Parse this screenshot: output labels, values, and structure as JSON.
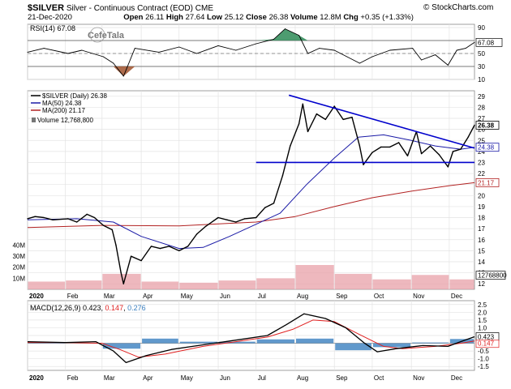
{
  "header": {
    "ticker": "$SILVER",
    "name": "Silver - Continuous Contract (EOD)",
    "exchange": "CME",
    "date": "21-Dec-2020",
    "open_label": "Open",
    "open": "26.11",
    "high_label": "High",
    "high": "27.64",
    "low_label": "Low",
    "low": "25.12",
    "close_label": "Close",
    "close": "26.38",
    "volume_label": "Volume",
    "volume": "12.8M",
    "chg_label": "Chg",
    "chg": "+0.35 (+1.33%)",
    "credit": "© StockCharts.com"
  },
  "watermark": "CefeTala",
  "colors": {
    "price": "#000000",
    "ma50": "#1a1aa6",
    "ma200": "#b22222",
    "volume": "#e8a0a8",
    "trendline": "#0000cc",
    "rsi_over": "#2e8b57",
    "rsi_under": "#a0522d",
    "macd_line": "#000000",
    "signal_line": "#e02020",
    "histogram": "#3a7fbf"
  },
  "chart_data": [
    {
      "type": "line",
      "panel": "RSI",
      "title": "RSI(14) 67.08",
      "last_value": "67.08",
      "ylim": [
        10,
        95
      ],
      "yticks": [
        "90",
        "70",
        "50",
        "30",
        "10"
      ],
      "reference_lines": [
        70,
        30
      ],
      "x": [
        "2020-01-02",
        "2020-01-15",
        "2020-02-03",
        "2020-02-14",
        "2020-03-02",
        "2020-03-10",
        "2020-03-18",
        "2020-03-27",
        "2020-04-15",
        "2020-05-01",
        "2020-05-15",
        "2020-06-01",
        "2020-06-15",
        "2020-07-01",
        "2020-07-15",
        "2020-07-24",
        "2020-08-04",
        "2020-08-11",
        "2020-08-20",
        "2020-09-01",
        "2020-09-21",
        "2020-10-01",
        "2020-10-15",
        "2020-11-02",
        "2020-11-09",
        "2020-11-20",
        "2020-11-30",
        "2020-12-07",
        "2020-12-14",
        "2020-12-21"
      ],
      "values": [
        52,
        58,
        50,
        55,
        45,
        35,
        15,
        58,
        52,
        60,
        50,
        62,
        55,
        65,
        72,
        88,
        78,
        50,
        58,
        55,
        35,
        45,
        55,
        58,
        40,
        48,
        32,
        55,
        58,
        67.08
      ]
    },
    {
      "type": "line",
      "panel": "Price",
      "title": "$SILVER (Daily) 26.38",
      "ylim": [
        11.5,
        29.5
      ],
      "yticks": [
        "29",
        "28",
        "27",
        "26",
        "25",
        "24",
        "23",
        "22",
        "21",
        "20",
        "19",
        "18",
        "17",
        "16",
        "15",
        "14",
        "13",
        "12"
      ],
      "xticks": [
        "2020",
        "Feb",
        "Mar",
        "Apr",
        "May",
        "Jun",
        "Jul",
        "Aug",
        "Sep",
        "Oct",
        "Nov",
        "Dec"
      ],
      "price_labels": [
        "26.38",
        "24.38",
        "21.17"
      ],
      "series": [
        {
          "name": "$SILVER (Daily) 26.38",
          "x": [
            "2020-01-02",
            "2020-01-08",
            "2020-01-15",
            "2020-01-22",
            "2020-02-03",
            "2020-02-10",
            "2020-02-18",
            "2020-02-24",
            "2020-03-02",
            "2020-03-09",
            "2020-03-12",
            "2020-03-16",
            "2020-03-18",
            "2020-03-24",
            "2020-04-01",
            "2020-04-09",
            "2020-04-16",
            "2020-04-23",
            "2020-05-01",
            "2020-05-08",
            "2020-05-15",
            "2020-05-22",
            "2020-06-01",
            "2020-06-08",
            "2020-06-15",
            "2020-06-22",
            "2020-07-01",
            "2020-07-08",
            "2020-07-15",
            "2020-07-22",
            "2020-07-28",
            "2020-08-04",
            "2020-08-07",
            "2020-08-11",
            "2020-08-18",
            "2020-08-25",
            "2020-09-01",
            "2020-09-08",
            "2020-09-15",
            "2020-09-21",
            "2020-09-24",
            "2020-10-01",
            "2020-10-08",
            "2020-10-15",
            "2020-10-22",
            "2020-10-29",
            "2020-11-05",
            "2020-11-09",
            "2020-11-16",
            "2020-11-23",
            "2020-11-30",
            "2020-12-04",
            "2020-12-10",
            "2020-12-16",
            "2020-12-21"
          ],
          "values": [
            17.9,
            18.1,
            18.0,
            17.8,
            17.9,
            17.6,
            18.3,
            18.0,
            17.3,
            16.9,
            15.5,
            13.0,
            12.0,
            14.5,
            14.1,
            15.4,
            15.2,
            15.4,
            15.0,
            15.4,
            16.5,
            17.2,
            18.0,
            17.8,
            17.6,
            17.9,
            18.0,
            18.9,
            19.3,
            21.8,
            24.5,
            26.5,
            28.3,
            25.8,
            27.4,
            26.9,
            28.1,
            26.9,
            27.1,
            24.5,
            22.8,
            23.9,
            24.4,
            24.4,
            24.8,
            23.6,
            25.8,
            23.8,
            24.5,
            23.7,
            22.6,
            24.0,
            24.2,
            25.3,
            26.38
          ]
        },
        {
          "name": "MA(50) 24.38",
          "x": [
            "2020-01-02",
            "2020-02-10",
            "2020-03-10",
            "2020-04-01",
            "2020-05-01",
            "2020-05-20",
            "2020-06-10",
            "2020-07-01",
            "2020-07-20",
            "2020-08-10",
            "2020-09-01",
            "2020-09-20",
            "2020-10-10",
            "2020-11-01",
            "2020-11-20",
            "2020-12-10",
            "2020-12-21"
          ],
          "values": [
            17.8,
            17.9,
            17.6,
            16.3,
            15.2,
            15.3,
            16.3,
            17.4,
            18.4,
            21.0,
            23.4,
            25.3,
            25.5,
            25.0,
            24.5,
            24.2,
            24.38
          ]
        },
        {
          "name": "MA(200) 21.17",
          "x": [
            "2020-01-02",
            "2020-03-01",
            "2020-05-01",
            "2020-07-01",
            "2020-08-01",
            "2020-09-01",
            "2020-10-01",
            "2020-11-01",
            "2020-12-01",
            "2020-12-21"
          ],
          "values": [
            17.1,
            17.3,
            17.25,
            17.6,
            18.1,
            19.0,
            19.8,
            20.4,
            20.9,
            21.17
          ]
        }
      ],
      "trendlines": [
        {
          "x": [
            "2020-07-27",
            "2020-12-21"
          ],
          "values": [
            29.1,
            24.3
          ]
        },
        {
          "x": [
            "2020-07-01",
            "2020-12-21"
          ],
          "values": [
            23.0,
            23.0
          ]
        }
      ],
      "volume": {
        "label": "Volume 12,768,800",
        "ylim": [
          0,
          55
        ],
        "yticks": [
          "40M",
          "30M",
          "20M",
          "10M"
        ],
        "last_label": "12768800",
        "x": [
          "2020-01",
          "2020-02",
          "2020-03",
          "2020-04",
          "2020-05",
          "2020-06",
          "2020-07",
          "2020-08",
          "2020-09",
          "2020-10",
          "2020-11",
          "2020-12"
        ],
        "values": [
          7,
          8,
          14,
          7,
          6,
          8,
          10,
          22,
          14,
          9,
          13,
          9
        ]
      }
    },
    {
      "type": "line",
      "panel": "MACD",
      "title": "MACD(12,26,9) 0.423, 0.147, 0.276",
      "legend_parts": [
        "MACD(12,26,9) 0.423, ",
        "0.147",
        ", ",
        "0.276"
      ],
      "ylim": [
        -1.75,
        2.75
      ],
      "yticks": [
        "2.5",
        "2.0",
        "1.5",
        "1.0",
        "0.5",
        "-0.5",
        "-1.0",
        "-1.5"
      ],
      "value_labels": [
        "0.423",
        "0.147"
      ],
      "xticks": [
        "2020",
        "Feb",
        "Mar",
        "Apr",
        "May",
        "Jun",
        "Jul",
        "Aug",
        "Sep",
        "Oct",
        "Nov",
        "Dec"
      ],
      "series": [
        {
          "name": "MACD(12,26,9)",
          "x": [
            "2020-01-02",
            "2020-02-01",
            "2020-02-25",
            "2020-03-10",
            "2020-03-20",
            "2020-04-05",
            "2020-04-25",
            "2020-05-20",
            "2020-06-15",
            "2020-07-10",
            "2020-07-25",
            "2020-08-08",
            "2020-08-25",
            "2020-09-10",
            "2020-09-25",
            "2020-10-05",
            "2020-10-20",
            "2020-11-10",
            "2020-11-30",
            "2020-12-10",
            "2020-12-21"
          ],
          "values": [
            0.1,
            0.05,
            0.1,
            -0.5,
            -1.25,
            -0.8,
            -0.4,
            -0.1,
            0.2,
            0.5,
            1.2,
            1.9,
            1.6,
            1.0,
            0.0,
            -0.55,
            -0.35,
            -0.15,
            -0.2,
            0.1,
            0.423
          ]
        },
        {
          "name": "Signal",
          "x": [
            "2020-01-02",
            "2020-02-01",
            "2020-03-01",
            "2020-03-15",
            "2020-03-30",
            "2020-04-20",
            "2020-05-20",
            "2020-06-15",
            "2020-07-10",
            "2020-07-30",
            "2020-08-15",
            "2020-09-01",
            "2020-09-20",
            "2020-10-10",
            "2020-10-25",
            "2020-11-20",
            "2020-12-10",
            "2020-12-21"
          ],
          "values": [
            0.05,
            0.05,
            0.0,
            -0.4,
            -0.9,
            -0.7,
            -0.2,
            0.1,
            0.4,
            0.9,
            1.5,
            1.4,
            0.6,
            -0.2,
            -0.35,
            -0.2,
            0.0,
            0.147
          ]
        },
        {
          "name": "Histogram",
          "x": [
            "2020-01",
            "2020-02",
            "2020-03",
            "2020-04",
            "2020-05",
            "2020-06",
            "2020-07",
            "2020-08",
            "2020-09",
            "2020-10",
            "2020-11",
            "2020-12"
          ],
          "values": [
            0.05,
            0.0,
            -0.35,
            0.3,
            0.1,
            0.1,
            0.25,
            0.3,
            -0.45,
            -0.25,
            0.05,
            0.276
          ]
        }
      ]
    }
  ]
}
